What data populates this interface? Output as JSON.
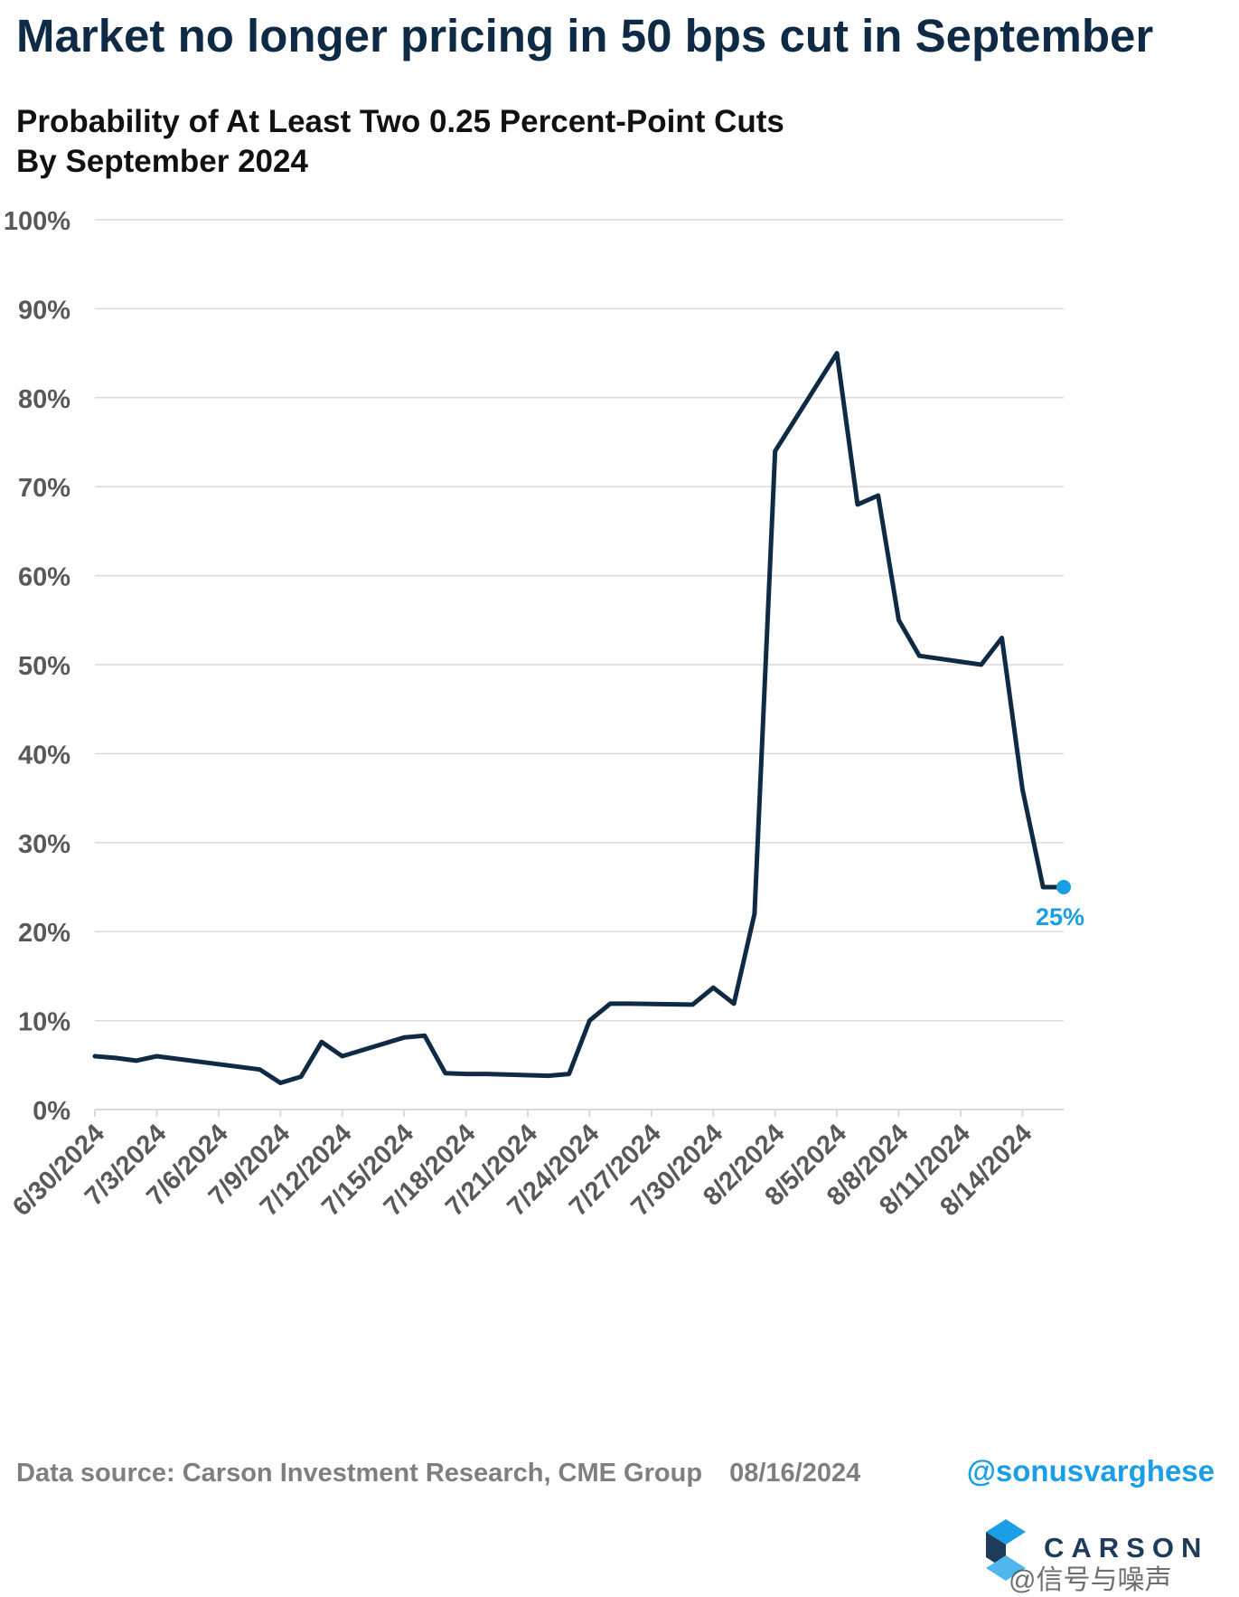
{
  "title": "Market no longer pricing in 50 bps cut in September",
  "subtitle_line1": "Probability of At Least Two 0.25 Percent-Point Cuts",
  "subtitle_line2": "By September 2024",
  "footer": {
    "source": "Data source: Carson Investment Research, CME Group",
    "date": "08/16/2024",
    "handle": "@sonusvarghese",
    "logo_text": "CARSON",
    "watermark": "@信号与噪声"
  },
  "colors": {
    "line": "#0f2a45",
    "highlight": "#1a9ee6",
    "grid": "#d9d9d9",
    "axis_text": "#595959"
  },
  "chart_data": {
    "type": "line",
    "title": "Probability of At Least Two 0.25 Percent-Point Cuts By September 2024",
    "ylabel": "",
    "xlabel": "",
    "ylim": [
      0,
      100
    ],
    "y_ticks": [
      "0%",
      "10%",
      "20%",
      "30%",
      "40%",
      "50%",
      "60%",
      "70%",
      "80%",
      "90%",
      "100%"
    ],
    "x_tick_labels": [
      "6/30/2024",
      "7/3/2024",
      "7/6/2024",
      "7/9/2024",
      "7/12/2024",
      "7/15/2024",
      "7/18/2024",
      "7/21/2024",
      "7/24/2024",
      "7/27/2024",
      "7/30/2024",
      "8/2/2024",
      "8/5/2024",
      "8/8/2024",
      "8/11/2024",
      "8/14/2024"
    ],
    "x_range": [
      "2024-06-30",
      "2024-08-16"
    ],
    "grid": true,
    "series": [
      {
        "x": [
          "2024-06-30",
          "2024-07-01",
          "2024-07-02",
          "2024-07-03",
          "2024-07-08",
          "2024-07-09",
          "2024-07-10",
          "2024-07-11",
          "2024-07-12",
          "2024-07-15",
          "2024-07-16",
          "2024-07-17",
          "2024-07-18",
          "2024-07-19",
          "2024-07-22",
          "2024-07-23",
          "2024-07-24",
          "2024-07-25",
          "2024-07-26",
          "2024-07-29",
          "2024-07-30",
          "2024-07-31",
          "2024-08-01",
          "2024-08-02",
          "2024-08-05",
          "2024-08-06",
          "2024-08-07",
          "2024-08-08",
          "2024-08-09",
          "2024-08-12",
          "2024-08-13",
          "2024-08-14",
          "2024-08-15",
          "2024-08-16"
        ],
        "values": [
          6.0,
          5.8,
          5.5,
          6.0,
          4.5,
          3.0,
          3.7,
          7.6,
          6.0,
          8.1,
          8.3,
          4.1,
          4.0,
          4.0,
          3.8,
          4.0,
          10.0,
          11.9,
          11.9,
          11.8,
          13.7,
          11.9,
          22.0,
          74.0,
          85.0,
          68.0,
          69.0,
          55.0,
          51.0,
          50.0,
          53.0,
          36.0,
          25.0,
          25.0
        ]
      }
    ],
    "annotations": [
      {
        "x": "2024-08-16",
        "y": 25,
        "text": "25%"
      }
    ]
  }
}
